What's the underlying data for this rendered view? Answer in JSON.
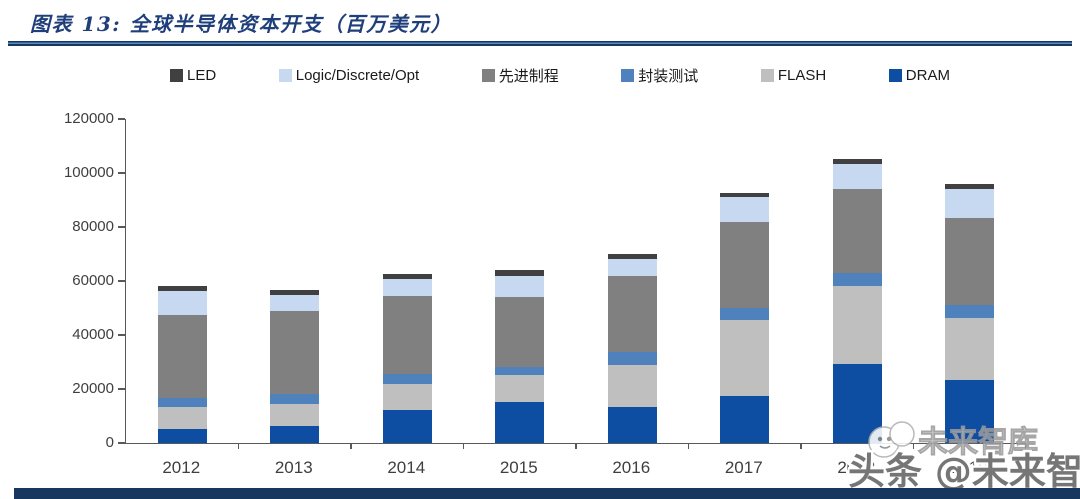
{
  "title": "图表 13:  全球半导体资本开支（百万美元）",
  "chart_data": {
    "type": "bar",
    "stacked": true,
    "title": "全球半导体资本开支（百万美元）",
    "figure_label": "图表 13:",
    "xlabel": "",
    "ylabel": "",
    "categories": [
      "2012",
      "2013",
      "2014",
      "2015",
      "2016",
      "2017",
      "2018",
      "2019"
    ],
    "series": [
      {
        "name": "DRAM",
        "color": "#0d4ea3",
        "values": [
          5200,
          6300,
          12400,
          15200,
          13300,
          17300,
          29100,
          23500
        ]
      },
      {
        "name": "FLASH",
        "color": "#bfbfbf",
        "values": [
          8300,
          8200,
          9300,
          9900,
          15500,
          28100,
          29000,
          22800
        ]
      },
      {
        "name": "封装测试",
        "color": "#4f81bd",
        "values": [
          3300,
          3600,
          3700,
          3200,
          4900,
          4600,
          4900,
          4700
        ]
      },
      {
        "name": "先进制程",
        "color": "#808080",
        "values": [
          30700,
          30700,
          28900,
          25800,
          28000,
          31900,
          30900,
          32300
        ]
      },
      {
        "name": "Logic/Discrete/Opt",
        "color": "#c6d9f1",
        "values": [
          8800,
          6100,
          6600,
          7800,
          6600,
          9200,
          9300,
          10900
        ]
      },
      {
        "name": "LED",
        "color": "#404040",
        "values": [
          1700,
          1600,
          1800,
          2100,
          1800,
          1500,
          1900,
          1800
        ]
      }
    ],
    "totals": [
      58000,
      56500,
      62700,
      64000,
      70100,
      92600,
      105100,
      96000
    ],
    "legend_order": [
      "LED",
      "Logic/Discrete/Opt",
      "先进制程",
      "封装测试",
      "FLASH",
      "DRAM"
    ],
    "legend_position": "top",
    "grid": false,
    "ylim": [
      0,
      120000
    ],
    "yticks": [
      0,
      20000,
      40000,
      60000,
      80000,
      100000,
      120000
    ],
    "ytick_labels": [
      "0",
      "20000",
      "40000",
      "60000",
      "80000",
      "100000",
      "120000"
    ]
  },
  "colors": {
    "title": "#1f3f7a",
    "rule_navy": "#17375e",
    "axis": "#595959",
    "bottom_bar": "#17375e"
  },
  "watermarks": {
    "big": "头条 @未来智库",
    "small": "未来智库"
  }
}
